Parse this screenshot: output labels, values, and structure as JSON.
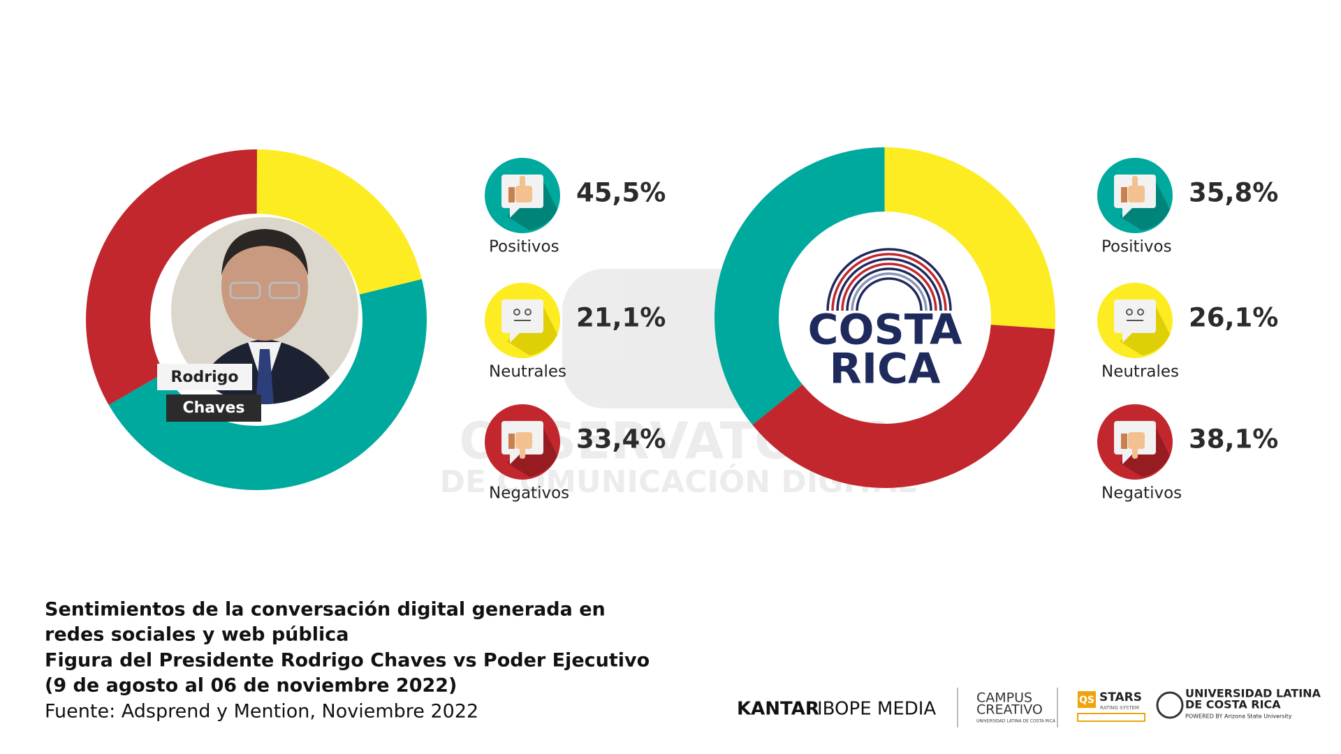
{
  "chart_data": [
    {
      "type": "donut",
      "start_angle": 240,
      "direction": "counterclockwise",
      "categories": [
        "Positivos",
        "Neutrales",
        "Negativos"
      ],
      "values": [
        45.5,
        21.1,
        33.4
      ],
      "value_labels": [
        "45,5%",
        "21,1%",
        "33,4%"
      ],
      "colors": [
        "#00a99d",
        "#fcec21",
        "#c1272d"
      ]
    },
    {
      "type": "donut",
      "start_angle": 231,
      "direction": "clockwise",
      "categories": [
        "Positivos",
        "Neutrales",
        "Negativos"
      ],
      "values": [
        35.8,
        26.1,
        38.1
      ],
      "value_labels": [
        "35,8%",
        "26,1%",
        "38,1%"
      ],
      "colors": [
        "#00a99d",
        "#fcec21",
        "#c1272d"
      ]
    }
  ],
  "photo_caption": {
    "first": "Rodrigo",
    "last": "Chaves"
  },
  "logo_text": [
    "COSTA",
    "RICA"
  ],
  "watermark": [
    "OBSERVATORIO",
    "DE COMUNICACIÓN DIGITAL"
  ],
  "caption": {
    "lines": [
      "Sentimientos de la conversación digital generada en",
      "redes sociales y web pública",
      "Figura del Presidente Rodrigo Chaves vs Poder Ejecutivo",
      "(9 de agosto al 06 de noviembre 2022)"
    ],
    "source": "Fuente: Adsprend y Mention, Noviembre 2022"
  },
  "sponsors": {
    "kantar": "KANTAR",
    "ibope": "IBOPE MEDIA",
    "campus": [
      "CAMPUS",
      "CREATIVO",
      "UNIVERSIDAD LATINA DE COSTA RICA"
    ],
    "qs": [
      "QS",
      "STARS",
      "RATING SYSTEM"
    ],
    "ulatina": [
      "UNIVERSIDAD LATINA",
      "DE COSTA RICA",
      "POWERED BY Arizona State University"
    ]
  }
}
